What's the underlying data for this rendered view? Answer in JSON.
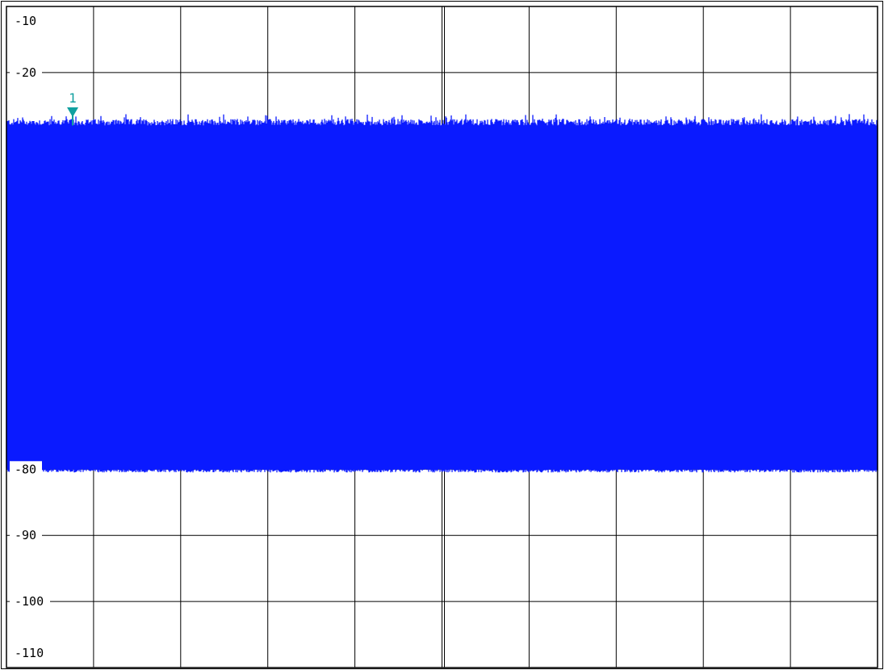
{
  "chart_data": {
    "type": "area",
    "title": "",
    "xlabel": "",
    "ylabel": "",
    "ylim": [
      -110,
      -10
    ],
    "y_ticks": [
      -10,
      -20,
      -80,
      -90,
      -100,
      -110
    ],
    "y_tick_labels": [
      "-10",
      "-20",
      "-80",
      "-90",
      "-100",
      "-110"
    ],
    "grid": true,
    "x_divisions": 10,
    "series": [
      {
        "color": "#0a1aff",
        "trace_style": "dense noise band",
        "upper_envelope": -28,
        "lower_envelope": -80
      }
    ],
    "markers": [
      {
        "label": "1",
        "color": "#11a0a0",
        "value": -26
      }
    ]
  }
}
